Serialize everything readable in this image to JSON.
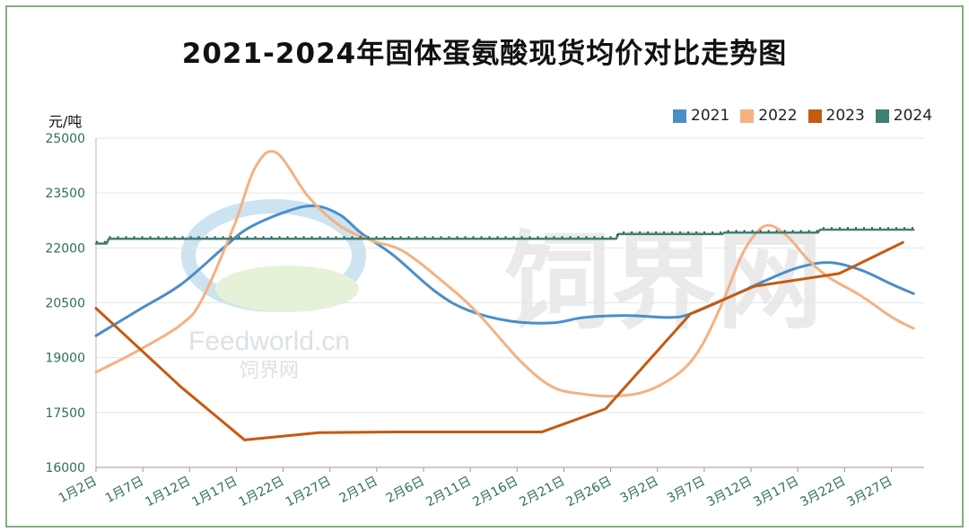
{
  "chart_data": {
    "type": "line",
    "title": "2021-2024年固体蛋氨酸现货均价对比走势图",
    "ylabel": "元/吨",
    "xlabel": "",
    "ylim": [
      16000,
      25000
    ],
    "yticks": [
      16000,
      17500,
      19000,
      20500,
      22000,
      23500,
      25000
    ],
    "categories": [
      "1月2日",
      "1月7日",
      "1月12日",
      "1月17日",
      "1月22日",
      "1月27日",
      "2月1日",
      "2月6日",
      "2月11日",
      "2月16日",
      "2月21日",
      "2月26日",
      "3月2日",
      "3月7日",
      "3月12日",
      "3月17日",
      "3月22日",
      "3月27日"
    ],
    "series": [
      {
        "name": "2021",
        "color": "#4a8ec9",
        "smooth": true,
        "step": false,
        "points": [
          [
            0,
            19600
          ],
          [
            2,
            20300
          ],
          [
            4,
            21000
          ],
          [
            6,
            22000
          ],
          [
            7.2,
            22550
          ],
          [
            9,
            23000
          ],
          [
            10.3,
            23150
          ],
          [
            11.5,
            22900
          ],
          [
            12.5,
            22400
          ],
          [
            14,
            21800
          ],
          [
            16,
            20800
          ],
          [
            17.5,
            20300
          ],
          [
            19.5,
            20000
          ],
          [
            21.5,
            19950
          ],
          [
            23,
            20100
          ],
          [
            25,
            20150
          ],
          [
            27,
            20100
          ],
          [
            28,
            20200
          ],
          [
            30,
            20700
          ],
          [
            31.5,
            21100
          ],
          [
            33,
            21450
          ],
          [
            34.5,
            21600
          ],
          [
            36,
            21400
          ],
          [
            37.5,
            21000
          ],
          [
            38.5,
            20750
          ]
        ]
      },
      {
        "name": "2022",
        "color": "#f4b183",
        "smooth": true,
        "step": false,
        "points": [
          [
            0,
            18600
          ],
          [
            2,
            19200
          ],
          [
            4,
            19900
          ],
          [
            5,
            20600
          ],
          [
            6.5,
            22600
          ],
          [
            7.5,
            24200
          ],
          [
            8.5,
            24600
          ],
          [
            10,
            23400
          ],
          [
            11.5,
            22600
          ],
          [
            13,
            22200
          ],
          [
            14.5,
            21900
          ],
          [
            16.5,
            21000
          ],
          [
            18,
            20200
          ],
          [
            20,
            18900
          ],
          [
            21.5,
            18200
          ],
          [
            23,
            18000
          ],
          [
            24.5,
            17950
          ],
          [
            26,
            18100
          ],
          [
            27.5,
            18600
          ],
          [
            28.5,
            19300
          ],
          [
            29.5,
            20500
          ],
          [
            30.5,
            21900
          ],
          [
            31.5,
            22600
          ],
          [
            32.5,
            22350
          ],
          [
            33.5,
            21700
          ],
          [
            34.5,
            21200
          ],
          [
            36,
            20700
          ],
          [
            37.5,
            20100
          ],
          [
            38.5,
            19800
          ]
        ]
      },
      {
        "name": "2023",
        "color": "#c55a11",
        "smooth": false,
        "step": false,
        "points": [
          [
            0,
            20350
          ],
          [
            4,
            18200
          ],
          [
            7,
            16750
          ],
          [
            10.5,
            16950
          ],
          [
            14,
            16970
          ],
          [
            19,
            16970
          ],
          [
            21,
            16970
          ],
          [
            24,
            17600
          ],
          [
            28,
            20200
          ],
          [
            31,
            20950
          ],
          [
            35,
            21300
          ],
          [
            38,
            22150
          ]
        ]
      },
      {
        "name": "2024",
        "color": "#3f7f74",
        "smooth": false,
        "step": true,
        "points": [
          [
            0,
            22120
          ],
          [
            0.5,
            22120
          ],
          [
            0.6,
            22250
          ],
          [
            24.5,
            22250
          ],
          [
            24.6,
            22380
          ],
          [
            29.5,
            22380
          ],
          [
            29.6,
            22420
          ],
          [
            34,
            22420
          ],
          [
            34.1,
            22500
          ],
          [
            38.5,
            22500
          ]
        ]
      }
    ],
    "legend_position": "top-right",
    "grid": true
  },
  "watermark": {
    "brand": "饲界网",
    "domain": "Feedworld.cn",
    "brand_small": "饲界网"
  }
}
